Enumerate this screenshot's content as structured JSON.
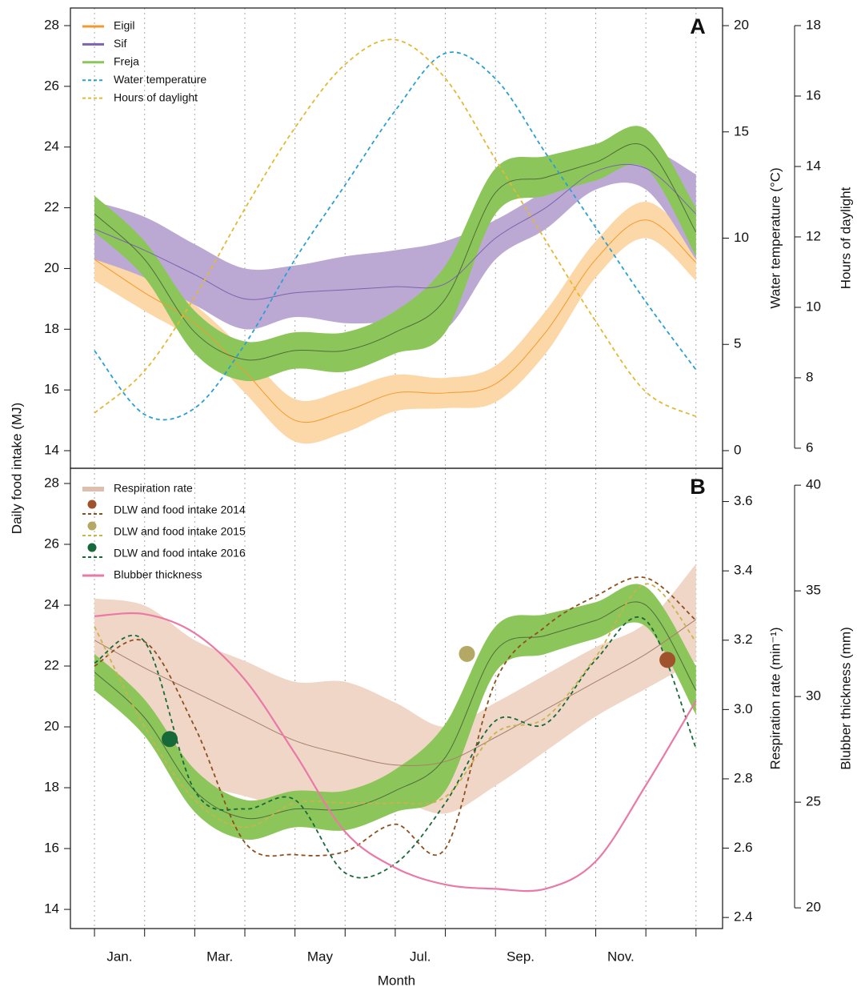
{
  "chart_data": [
    {
      "type": "line",
      "title": "A",
      "ylabel": "Daily food intake (MJ)",
      "y2label": "Water temperature (°C)",
      "y3label": "Hours of daylight",
      "x": [
        0,
        1,
        2,
        3,
        4,
        5,
        6,
        7,
        8,
        9,
        10,
        11,
        12
      ],
      "xlim": [
        -0.48,
        12.53
      ],
      "xticks": [
        0,
        1,
        2,
        3,
        4,
        5,
        6,
        7,
        8,
        9,
        10,
        11,
        12
      ],
      "grid": true,
      "ylim": [
        13.42,
        28.58
      ],
      "yticks": [
        14,
        16,
        18,
        20,
        22,
        24,
        26,
        28
      ],
      "y2lim": [
        -0.83,
        20.83
      ],
      "y2ticks": [
        0,
        5,
        10,
        15,
        20
      ],
      "y3lim": [
        5.43,
        18.5
      ],
      "y3ticks": [
        6,
        8,
        10,
        12,
        14,
        16,
        18
      ],
      "legend": "upper left",
      "series": [
        {
          "name": "Eigil",
          "color": "#f39a2e",
          "band_color": "#fcd8a8",
          "line_color": "#f39a2e",
          "axis": "y",
          "values": [
            20.3,
            19.2,
            18.2,
            16.6,
            15.0,
            15.3,
            15.9,
            15.9,
            16.2,
            17.9,
            20.3,
            21.6,
            20.2
          ],
          "lower": [
            19.6,
            18.6,
            17.6,
            15.9,
            14.3,
            14.6,
            15.3,
            15.4,
            15.6,
            17.2,
            19.7,
            21.0,
            19.6
          ],
          "upper": [
            20.9,
            19.8,
            18.8,
            17.3,
            15.7,
            16.0,
            16.5,
            16.4,
            16.8,
            18.6,
            20.9,
            22.2,
            20.8
          ]
        },
        {
          "name": "Sif",
          "color": "#7b63ad",
          "band_color": "#bba9d4",
          "line_color": "#7b63ad",
          "axis": "y",
          "values": [
            21.3,
            20.6,
            19.8,
            19.0,
            19.2,
            19.3,
            19.4,
            19.5,
            21.0,
            22.0,
            23.2,
            23.3,
            21.8
          ],
          "lower": [
            20.3,
            19.7,
            18.8,
            18.0,
            18.4,
            18.2,
            18.2,
            18.0,
            20.3,
            21.3,
            22.6,
            22.6,
            20.3
          ],
          "upper": [
            22.2,
            21.7,
            20.8,
            20.0,
            20.1,
            20.4,
            20.6,
            20.9,
            21.6,
            22.6,
            23.9,
            24.0,
            23.1
          ]
        },
        {
          "name": "Freja",
          "color": "#8cc65a",
          "band_color": "#8cc65a",
          "line_color": "#4f6b3c",
          "axis": "y",
          "values": [
            21.8,
            20.3,
            17.9,
            17.0,
            17.3,
            17.3,
            17.9,
            19.0,
            22.5,
            23.0,
            23.5,
            24.0,
            21.2
          ],
          "lower": [
            21.2,
            19.7,
            17.2,
            16.3,
            16.7,
            16.6,
            17.2,
            17.9,
            21.8,
            22.4,
            22.9,
            23.3,
            20.4
          ],
          "upper": [
            22.4,
            20.9,
            18.6,
            17.6,
            17.9,
            17.9,
            18.6,
            20.1,
            23.3,
            23.7,
            24.1,
            24.6,
            22.0
          ]
        },
        {
          "name": "Water temperature",
          "color": "#2b9fd4",
          "dashed": true,
          "axis": "y2",
          "values": [
            4.7,
            1.7,
            2.0,
            5.0,
            9.0,
            12.5,
            16.0,
            18.7,
            17.5,
            14.0,
            10.5,
            7.0,
            3.8
          ]
        },
        {
          "name": "Hours of daylight",
          "color": "#e2b935",
          "dashed": true,
          "axis": "y3",
          "values": [
            7.0,
            8.2,
            10.3,
            12.8,
            15.1,
            16.9,
            17.6,
            16.5,
            14.2,
            11.9,
            9.6,
            7.6,
            6.9
          ]
        }
      ]
    },
    {
      "type": "line",
      "title": "B",
      "xlabel": "Month",
      "y2label": "Respiration rate (min⁻¹)",
      "y3label": "Blubber thickness (mm)",
      "x": [
        0,
        1,
        2,
        3,
        4,
        5,
        6,
        7,
        8,
        9,
        10,
        11,
        12
      ],
      "xlim": [
        -0.48,
        12.53
      ],
      "xticks": [
        0,
        1,
        2,
        3,
        4,
        5,
        6,
        7,
        8,
        9,
        10,
        11,
        12
      ],
      "grid": true,
      "xtick_labels": [
        {
          "value": 0.5,
          "label": "Jan."
        },
        {
          "value": 2.5,
          "label": "Mar."
        },
        {
          "value": 4.5,
          "label": "May"
        },
        {
          "value": 6.5,
          "label": "Jul."
        },
        {
          "value": 8.5,
          "label": "Sep."
        },
        {
          "value": 10.5,
          "label": "Nov."
        }
      ],
      "ylim": [
        13.37,
        28.5
      ],
      "yticks": [
        14,
        16,
        18,
        20,
        22,
        24,
        26,
        28
      ],
      "y2lim": [
        2.368,
        3.696
      ],
      "y2ticks": [
        2.4,
        2.6,
        2.8,
        {
          "value": 3,
          "label": "3.0"
        },
        3.2,
        3.4,
        3.6
      ],
      "y3lim": [
        19.02,
        40.8
      ],
      "y3ticks": [
        20,
        25,
        30,
        35,
        40
      ],
      "legend": "upper left",
      "series": [
        {
          "name": "Respiration rate",
          "color": "#dcc0ad",
          "band_color": "#f0d6c6",
          "line_color": "#a5806c",
          "axis": "y2",
          "values": [
            3.2,
            3.12,
            3.05,
            2.98,
            2.91,
            2.87,
            2.84,
            2.85,
            2.92,
            3.0,
            3.08,
            3.16,
            3.26
          ],
          "lower": [
            3.06,
            2.95,
            2.8,
            2.75,
            2.72,
            2.74,
            2.74,
            2.7,
            2.78,
            2.88,
            2.98,
            3.06,
            3.14
          ],
          "upper": [
            3.32,
            3.3,
            3.2,
            3.14,
            3.08,
            3.08,
            3.02,
            2.95,
            3.02,
            3.1,
            3.18,
            3.25,
            3.42
          ]
        },
        {
          "name": "Freja",
          "color": "#8cc65a",
          "band_color": "#8cc65a",
          "line_color": "#4f6b3c",
          "axis": "y",
          "legend": false,
          "values": [
            21.8,
            20.3,
            17.9,
            17.0,
            17.3,
            17.3,
            17.9,
            19.0,
            22.5,
            23.0,
            23.5,
            24.0,
            21.2
          ],
          "lower": [
            21.2,
            19.7,
            17.2,
            16.3,
            16.7,
            16.6,
            17.2,
            17.9,
            21.8,
            22.4,
            22.9,
            23.3,
            20.4
          ],
          "upper": [
            22.4,
            20.9,
            18.6,
            17.6,
            17.9,
            17.9,
            18.6,
            20.1,
            23.3,
            23.7,
            24.1,
            24.6,
            22.0
          ]
        },
        {
          "name": "DLW and food intake 2014",
          "color": "#8e4f1e",
          "point_color": "#a0522d",
          "dashed": true,
          "axis": "y",
          "values": [
            22.0,
            22.8,
            20.0,
            16.2,
            15.8,
            15.9,
            16.8,
            16.0,
            21.5,
            23.3,
            24.3,
            24.9,
            23.5
          ],
          "point_x": 11.43,
          "point_y": 22.2
        },
        {
          "name": "DLW and food intake 2015",
          "color": "#c9b44a",
          "point_color": "#b5a865",
          "dashed": true,
          "axis": "y",
          "values": [
            23.3,
            20.0,
            17.6,
            16.7,
            17.5,
            17.5,
            17.5,
            17.7,
            19.8,
            20.3,
            22.3,
            24.7,
            22.8
          ],
          "point_x": 7.43,
          "point_y": 22.4
        },
        {
          "name": "DLW and food intake 2016",
          "color": "#17693a",
          "point_color": "#17693a",
          "dashed": true,
          "axis": "y",
          "values": [
            22.1,
            22.8,
            17.9,
            17.3,
            17.6,
            15.2,
            15.5,
            17.5,
            20.2,
            20.1,
            22.2,
            23.5,
            19.3
          ],
          "point_x": 1.5,
          "point_y": 19.6
        },
        {
          "name": "Blubber thickness",
          "color": "#e97aa6",
          "line_color": "#e97aa6",
          "axis": "y3",
          "values": [
            33.8,
            33.9,
            33.0,
            30.8,
            27.3,
            23.6,
            21.9,
            21.1,
            20.9,
            20.9,
            22.2,
            25.8,
            29.8
          ]
        }
      ]
    }
  ]
}
